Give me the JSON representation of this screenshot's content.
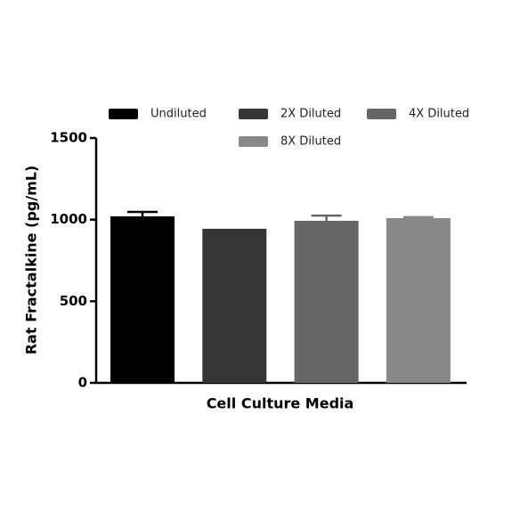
{
  "chart_data": {
    "type": "bar",
    "y_label": "Rat Fractalkine (pg/mL)",
    "categories": [
      "Cell Culture Media"
    ],
    "series": [
      {
        "name": "Undiluted",
        "color": "#000000",
        "values": [
          1020
        ],
        "error": [
          27
        ]
      },
      {
        "name": "2X Diluted",
        "color": "#363636",
        "values": [
          944
        ]
      },
      {
        "name": "4X Diluted",
        "color": "#666666",
        "values": [
          993
        ],
        "error": [
          32
        ]
      },
      {
        "name": "8X Diluted",
        "color": "#888888",
        "values": [
          1009
        ],
        "error": [
          6
        ]
      }
    ],
    "ylim": [
      0,
      1500
    ],
    "yticks": [
      0,
      500,
      1000,
      1500
    ],
    "grid": false
  }
}
